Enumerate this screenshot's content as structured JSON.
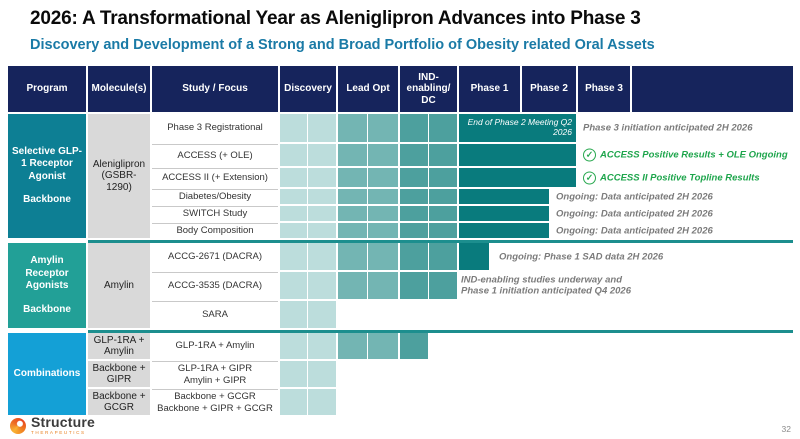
{
  "slide": {
    "title": "2026: A Transformational Year as Aleniglipron Advances into Phase 3",
    "subtitle": "Discovery and Development of a Strong and Broad Portfolio of Obesity related Oral Assets",
    "page_number": "32"
  },
  "logo": {
    "name": "Structure",
    "sub": "THERAPEUTICS"
  },
  "colors": {
    "header_navy": "#16245c",
    "discovery_cell": "#bcdddc",
    "leadopt_cell": "#73b5b3",
    "ind_cell": "#4da09e",
    "phase_bar_dark": "#097b7d",
    "section_divider": "#1c8e8e",
    "annotation_gray": "#7b7b7b",
    "annotation_green": "#1ea54c",
    "molecule_gray": "#d9d9d9",
    "subtitle_teal": "#1a7aa6"
  },
  "table": {
    "headers": [
      "Program",
      "Molecule(s)",
      "Study / Focus",
      "Discovery",
      "Lead Opt",
      "IND-\nenabling/\nDC",
      "Phase 1",
      "Phase 2",
      "Phase 3",
      ""
    ],
    "sections": [
      {
        "program": {
          "main": "Selective GLP-1 Receptor Agonist",
          "sub": "Backbone",
          "color": "#0d7f94"
        },
        "molecule": "Aleniglipron (GSBR-1290)",
        "rows": [
          {
            "study": "Phase 3 Registrational",
            "cells": [
              "discovery",
              "discovery",
              "leadopt",
              "leadopt",
              "ind",
              "ind"
            ],
            "bar": "phase2_end",
            "bar_label": "End of Phase 2 Meeting Q2 2026",
            "annotation": {
              "type": "gray",
              "text": "Phase 3 initiation anticipated 2H 2026",
              "at": "phase3"
            }
          },
          {
            "study": "ACCESS (+ OLE)",
            "cells": [
              "discovery",
              "discovery",
              "leadopt",
              "leadopt",
              "ind",
              "ind"
            ],
            "bar": "phase2_end",
            "annotation": {
              "type": "green-check",
              "text": "ACCESS Positive Results + OLE Ongoing",
              "at": "phase3"
            }
          },
          {
            "study": "ACCESS II (+ Extension)",
            "cells": [
              "discovery",
              "discovery",
              "leadopt",
              "leadopt",
              "ind",
              "ind"
            ],
            "bar": "phase2_end",
            "annotation": {
              "type": "green-check",
              "text": "ACCESS II Positive Topline Results",
              "at": "phase3"
            }
          },
          {
            "study": "Diabetes/Obesity",
            "cells": [
              "discovery",
              "discovery",
              "leadopt",
              "leadopt",
              "ind",
              "ind"
            ],
            "bar": "phase2_half",
            "annotation": {
              "type": "gray",
              "text": "Ongoing: Data anticipated 2H 2026",
              "at": "phase2_half"
            }
          },
          {
            "study": "SWITCH Study",
            "cells": [
              "discovery",
              "discovery",
              "leadopt",
              "leadopt",
              "ind",
              "ind"
            ],
            "bar": "phase2_half",
            "annotation": {
              "type": "gray",
              "text": "Ongoing: Data anticipated 2H 2026",
              "at": "phase2_half"
            }
          },
          {
            "study": "Body Composition",
            "cells": [
              "discovery",
              "discovery",
              "leadopt",
              "leadopt",
              "ind",
              "ind"
            ],
            "bar": "phase2_half",
            "annotation": {
              "type": "gray",
              "text": "Ongoing: Data anticipated 2H 2026",
              "at": "phase2_half"
            }
          }
        ]
      },
      {
        "program": {
          "main": "Amylin Receptor Agonists",
          "sub": "Backbone",
          "color": "#22a097"
        },
        "molecule": "Amylin",
        "rows": [
          {
            "study": "ACCG-2671 (DACRA)",
            "cells": [
              "discovery",
              "discovery",
              "leadopt",
              "leadopt",
              "ind",
              "ind"
            ],
            "bar": "phase1_half",
            "annotation": {
              "type": "gray",
              "text": "Ongoing: Phase 1 SAD data 2H 2026",
              "at": "phase1_half"
            }
          },
          {
            "study": "ACCG-3535 (DACRA)",
            "cells": [
              "discovery",
              "discovery",
              "leadopt",
              "leadopt",
              "ind",
              "ind"
            ],
            "bar": null,
            "annotation": {
              "type": "gray",
              "text": "IND-enabling studies underway and\nPhase 1 initiation anticipated Q4 2026",
              "at": "ind_end"
            }
          },
          {
            "study": "SARA",
            "cells": [
              "discovery",
              "discovery"
            ],
            "bar": null,
            "annotation": null
          }
        ]
      },
      {
        "program": {
          "main": "Combinations",
          "sub": null,
          "color": "#14a0d6"
        },
        "molecules": [
          "GLP-1RA + Amylin",
          "Backbone + GIPR",
          "Backbone + GCGR"
        ],
        "rows": [
          {
            "study": "GLP-1RA + Amylin",
            "cells": [
              "discovery",
              "discovery",
              "leadopt",
              "leadopt",
              "ind"
            ],
            "bar": null,
            "annotation": null
          },
          {
            "study": "GLP-1RA + GIPR\nAmylin + GIPR",
            "cells": [
              "discovery",
              "discovery"
            ],
            "bar": null,
            "annotation": null
          },
          {
            "study": "Backbone + GCGR\nBackbone + GIPR + GCGR",
            "cells": [
              "discovery",
              "discovery"
            ],
            "bar": null,
            "annotation": null
          }
        ]
      }
    ]
  }
}
